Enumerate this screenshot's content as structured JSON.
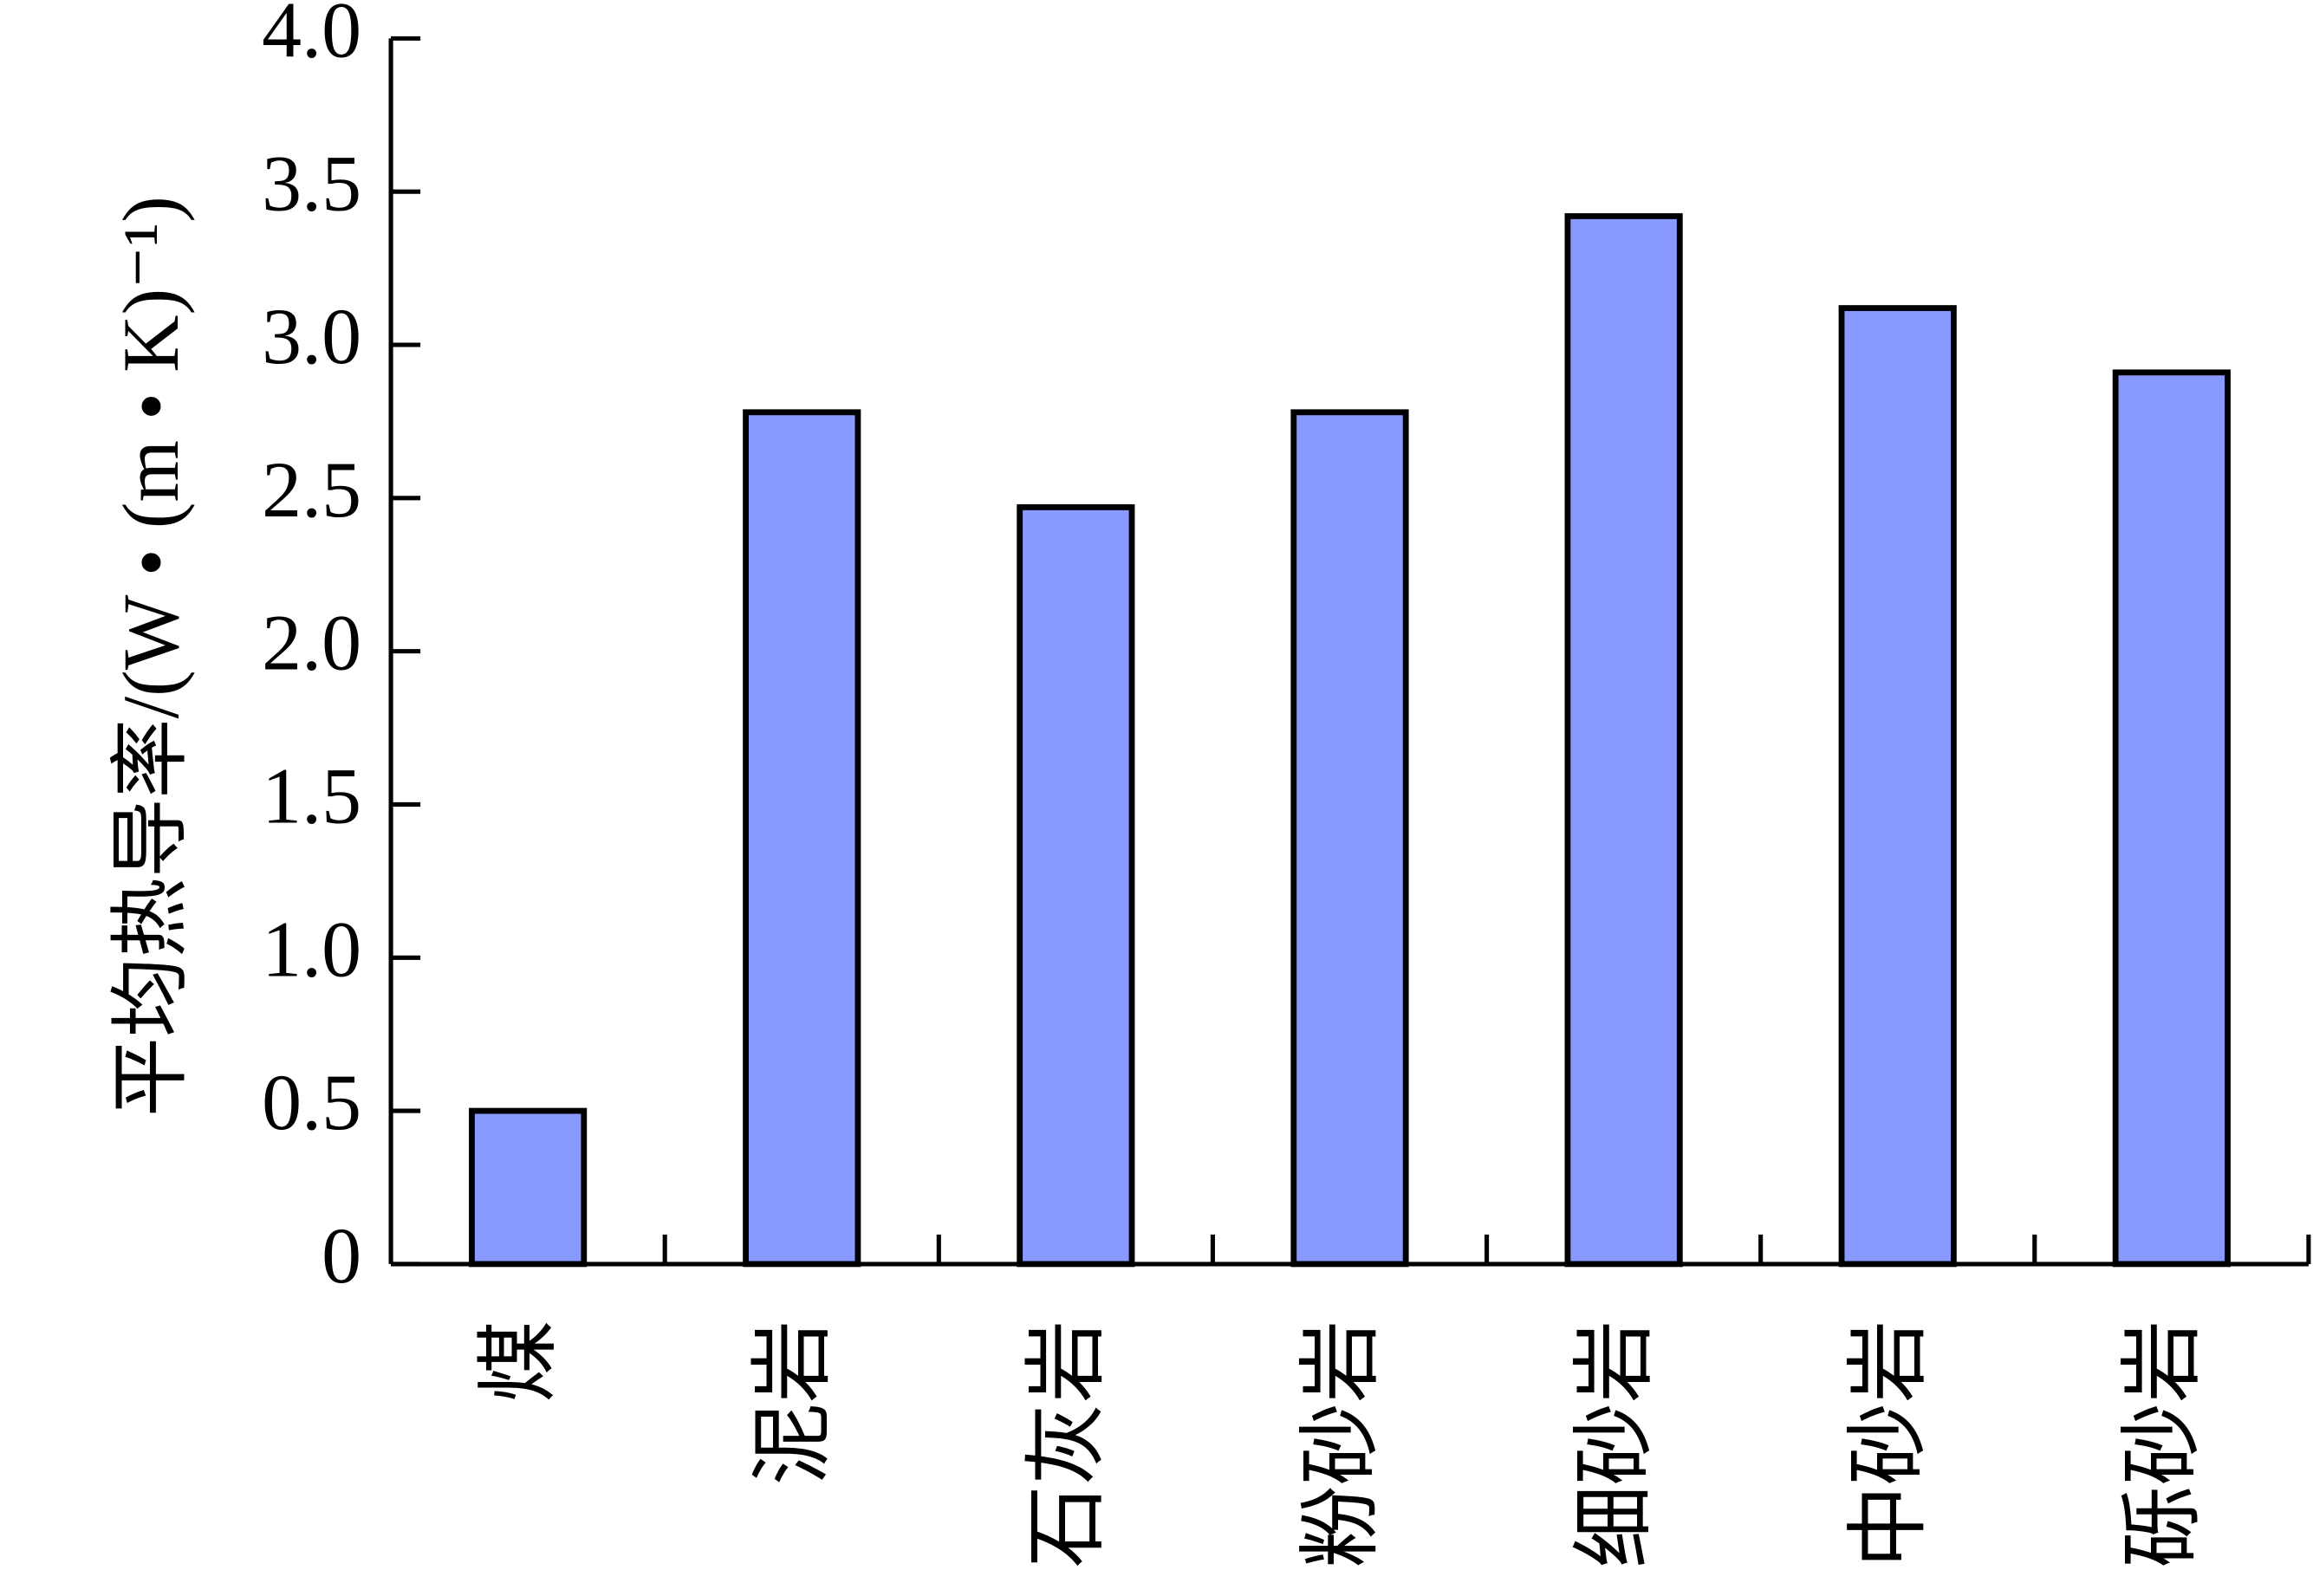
{
  "chart_data": {
    "type": "bar",
    "ylabel": "平均热导率/(W • (m • K)⁻¹)",
    "categories": [
      "煤",
      "泥岩",
      "石灰岩",
      "粉砂岩",
      "细砂岩",
      "中砂岩",
      "砾砂岩"
    ],
    "values": [
      0.5,
      2.78,
      2.47,
      2.78,
      3.42,
      3.12,
      2.91
    ],
    "color": "#8899ff",
    "ylim": [
      0,
      4
    ],
    "yticks": [
      0,
      0.5,
      {
        "value": 1,
        "label": "1.0"
      },
      1.5,
      {
        "value": 2,
        "label": "2.0"
      },
      2.5,
      {
        "value": 3,
        "label": "3.0"
      },
      3.5,
      {
        "value": 4,
        "label": "4.0"
      }
    ],
    "grid": false
  }
}
